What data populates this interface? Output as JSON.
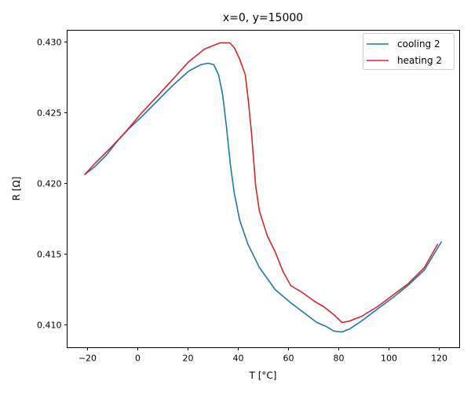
{
  "chart_data": {
    "type": "line",
    "title": "x=0, y=15000",
    "xlabel": "T [°C]",
    "ylabel": "R [Ω]",
    "xlim": [
      -28.1,
      128.1
    ],
    "ylim": [
      0.40839,
      0.43083
    ],
    "xticks": [
      -20,
      0,
      20,
      40,
      60,
      80,
      100,
      120
    ],
    "xtick_labels": [
      "−20",
      "0",
      "20",
      "40",
      "60",
      "80",
      "100",
      "120"
    ],
    "yticks": [
      0.41,
      0.415,
      0.42,
      0.425,
      0.43
    ],
    "ytick_labels": [
      "0.410",
      "0.415",
      "0.420",
      "0.425",
      "0.430"
    ],
    "grid": false,
    "legend_placement": "top-right",
    "series": [
      {
        "name": "cooling 2",
        "color": "#1f77b4",
        "x": [
          -21.2,
          -17.2,
          -12.5,
          -7.8,
          -3.1,
          1.6,
          7.8,
          14,
          20.3,
          25,
          28.1,
          30.3,
          32.2,
          33.8,
          35.3,
          36.9,
          38.4,
          40.6,
          43.8,
          48.4,
          54.7,
          60.9,
          67.2,
          71.3,
          75,
          78.1,
          81.3,
          84.4,
          89.1,
          95.3,
          101.6,
          107.8,
          114.1,
          120.9
        ],
        "y": [
          0.42061,
          0.42117,
          0.422,
          0.42306,
          0.42394,
          0.42472,
          0.42583,
          0.42694,
          0.42794,
          0.42839,
          0.4285,
          0.42839,
          0.42767,
          0.42628,
          0.42406,
          0.42128,
          0.41933,
          0.41739,
          0.41572,
          0.41406,
          0.4125,
          0.41156,
          0.41072,
          0.41017,
          0.40989,
          0.40956,
          0.4095,
          0.40972,
          0.41028,
          0.41111,
          0.41194,
          0.41283,
          0.41389,
          0.41589
        ]
      },
      {
        "name": "heating 2",
        "color": "#d62728",
        "x": [
          -21.2,
          -17.2,
          -10.9,
          -4.7,
          1.6,
          7.8,
          14.1,
          20.3,
          26.6,
          32.8,
          36.6,
          38.4,
          40.6,
          42.8,
          44.1,
          45.3,
          46.9,
          48.4,
          51.6,
          54.7,
          57.8,
          60.9,
          65.6,
          70.3,
          74.1,
          78.1,
          81.3,
          84.4,
          89.1,
          95.3,
          101.6,
          107.8,
          114.1,
          119.4
        ],
        "y": [
          0.42061,
          0.42139,
          0.4225,
          0.42367,
          0.425,
          0.42617,
          0.42739,
          0.42861,
          0.4295,
          0.42994,
          0.42994,
          0.42961,
          0.42878,
          0.42767,
          0.42572,
          0.4235,
          0.41989,
          0.41806,
          0.41628,
          0.41517,
          0.41378,
          0.41278,
          0.41228,
          0.41167,
          0.41128,
          0.41072,
          0.41017,
          0.41028,
          0.41061,
          0.41128,
          0.41211,
          0.41294,
          0.41406,
          0.41572
        ]
      }
    ]
  }
}
